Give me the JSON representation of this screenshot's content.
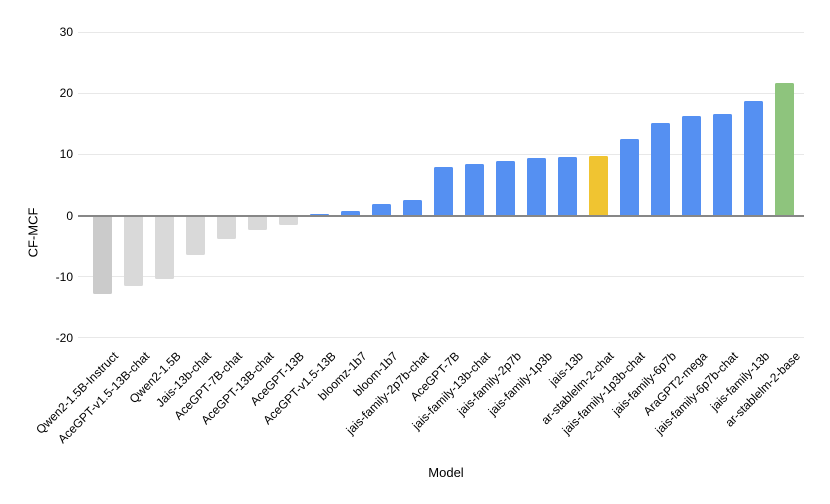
{
  "chart_data": {
    "type": "bar",
    "title": "",
    "xlabel": "Model",
    "ylabel": "CF-MCF",
    "ylim": [
      -20,
      30
    ],
    "yticks": [
      30,
      20,
      10,
      0,
      -10,
      -20
    ],
    "grid": true,
    "legend": "none",
    "categories": [
      "Qwen2-1.5B-Instruct",
      "AceGPT-v1.5-13B-chat",
      "Qwen2-1.5B",
      "Jais-13b-chat",
      "AceGPT-7B-chat",
      "AceGPT-13B-chat",
      "AceGPT-13B",
      "AceGPT-v1.5-13B",
      "bloomz-1b7",
      "bloom-1b7",
      "jais-family-2p7b-chat",
      "AceGPT-7B",
      "jais-family-13b-chat",
      "jais-family-2p7b",
      "jais-family-1p3b",
      "jais-13b",
      "ar-stablelm-2-chat",
      "jais-family-1p3b-chat",
      "jais-family-6p7b",
      "AraGPT2-mega",
      "jais-family-6p7b-chat",
      "jais-family-13b",
      "ar-stablelm-2-base"
    ],
    "values": [
      -12.9,
      -11.6,
      -10.4,
      -6.5,
      -3.8,
      -2.3,
      -1.6,
      0.3,
      0.7,
      1.9,
      2.6,
      7.9,
      8.4,
      9.0,
      9.4,
      9.5,
      9.7,
      12.6,
      15.2,
      16.3,
      16.6,
      18.7,
      21.7
    ],
    "bar_colors": [
      "#cbcbcb",
      "#d9d9d9",
      "#d9d9d9",
      "#d9d9d9",
      "#d9d9d9",
      "#d9d9d9",
      "#d9d9d9",
      "#5590f2",
      "#5590f2",
      "#5590f2",
      "#5590f2",
      "#5590f2",
      "#5590f2",
      "#5590f2",
      "#5590f2",
      "#5590f2",
      "#f0c431",
      "#5590f2",
      "#5590f2",
      "#5590f2",
      "#5590f2",
      "#5590f2",
      "#8ec47d"
    ],
    "colors": {
      "negative_gray": "#d9d9d9",
      "positive_blue": "#5590f2",
      "highlight_gold": "#f0c431",
      "highlight_green": "#8ec47d",
      "gridline": "#e8e8e8",
      "zero_axis": "#878787"
    }
  }
}
